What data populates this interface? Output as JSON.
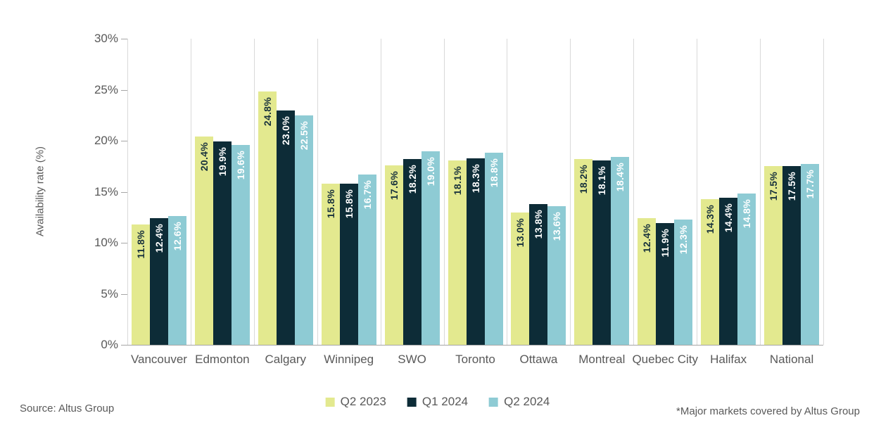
{
  "chart_data": {
    "type": "bar",
    "title": "",
    "ylabel": "Availability rate (%)",
    "xlabel": "",
    "ylim": [
      0,
      30
    ],
    "yticks": [
      0,
      5,
      10,
      15,
      20,
      25,
      30
    ],
    "ytick_labels": [
      "0%",
      "5%",
      "10%",
      "15%",
      "20%",
      "25%",
      "30%"
    ],
    "grid": "vertical-category-separators",
    "legend_position": "bottom-center",
    "categories": [
      "Vancouver",
      "Edmonton",
      "Calgary",
      "Winnipeg",
      "SWO",
      "Toronto",
      "Ottawa",
      "Montreal",
      "Quebec City",
      "Halifax",
      "National"
    ],
    "series": [
      {
        "name": "Q2 2023",
        "color": "#e3e98f",
        "label_color": "#17313c",
        "values": [
          11.8,
          20.4,
          24.8,
          15.8,
          17.6,
          18.1,
          13.0,
          18.2,
          12.4,
          14.3,
          17.5
        ],
        "labels": [
          "11.8%",
          "20.4%",
          "24.8%",
          "15.8%",
          "17.6%",
          "18.1%",
          "13.0%",
          "18.2%",
          "12.4%",
          "14.3%",
          "17.5%"
        ]
      },
      {
        "name": "Q1 2024",
        "color": "#0d2c37",
        "label_color": "#ffffff",
        "values": [
          12.4,
          19.9,
          23.0,
          15.8,
          18.2,
          18.3,
          13.8,
          18.1,
          11.9,
          14.4,
          17.5
        ],
        "labels": [
          "12.4%",
          "19.9%",
          "23.0%",
          "15.8%",
          "18.2%",
          "18.3%",
          "13.8%",
          "18.1%",
          "11.9%",
          "14.4%",
          "17.5%"
        ]
      },
      {
        "name": "Q2 2024",
        "color": "#8ecbd4",
        "label_color": "#ffffff",
        "values": [
          12.6,
          19.6,
          22.5,
          16.7,
          19.0,
          18.8,
          13.6,
          18.4,
          12.3,
          14.8,
          17.7
        ],
        "labels": [
          "12.6%",
          "19.6%",
          "22.5%",
          "16.7%",
          "19.0%",
          "18.8%",
          "13.6%",
          "18.4%",
          "12.3%",
          "14.8%",
          "17.7%"
        ]
      }
    ]
  },
  "footer": {
    "source": "Source: Altus Group",
    "note": "*Major markets covered by Altus Group"
  }
}
